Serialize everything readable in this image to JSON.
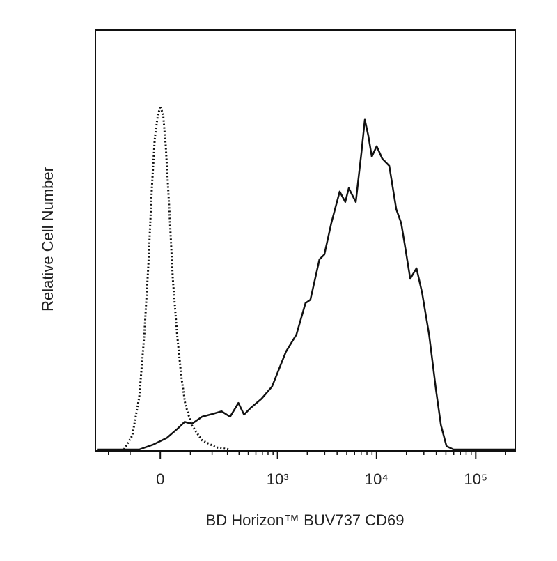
{
  "chart_data": {
    "type": "line",
    "xlabel": "BD Horizon™ BUV737 CD69",
    "ylabel": "Relative Cell Number",
    "xscale": "asinh",
    "xlim": [
      -283,
      250000
    ],
    "ylim": [
      0,
      100
    ],
    "xticks": [
      0,
      {
        "value": 1000,
        "label": "10³"
      },
      {
        "value": 10000,
        "label": "10⁴"
      },
      {
        "value": 100000,
        "label": "10⁵"
      }
    ],
    "xminorticks": [
      -200,
      -100,
      100,
      200,
      300,
      400,
      500,
      600,
      700,
      800,
      900,
      2000,
      3000,
      4000,
      5000,
      6000,
      7000,
      8000,
      9000,
      20000,
      30000,
      40000,
      50000,
      60000,
      70000,
      80000,
      90000,
      200000
    ],
    "series": [
      {
        "color": "#111111",
        "dash": "dotted",
        "x": [
          -125,
          -92,
          -67,
          -50,
          -37,
          -26,
          -17,
          -9,
          0,
          9,
          17,
          28,
          39,
          53,
          67,
          81,
          105,
          149,
          224,
          321
        ],
        "values": [
          0,
          3.3,
          12.5,
          27.4,
          44.0,
          62.3,
          73.9,
          78.9,
          81.9,
          79.7,
          72.3,
          57.3,
          40.7,
          27.4,
          17.4,
          10.8,
          5.8,
          2.2,
          0.5,
          0
        ]
      },
      {
        "color": "#111111",
        "dash": "solid",
        "x": [
          -267,
          -67,
          -21,
          21,
          55,
          79,
          105,
          149,
          205,
          258,
          321,
          394,
          452,
          535,
          686,
          878,
          1217,
          1552,
          1919,
          2149,
          2655,
          2975,
          3498,
          4250,
          4835,
          5246,
          6170,
          7025,
          7620,
          8262,
          8960,
          10030,
          11420,
          13440,
          15800,
          17700,
          19200,
          21850,
          25280,
          28780,
          33860,
          39800,
          44550,
          50750,
          59660,
          250000
        ],
        "values": [
          0,
          0,
          1.2,
          2.8,
          5.0,
          6.6,
          6.1,
          7.8,
          8.5,
          9.1,
          7.8,
          11.1,
          8.3,
          10.0,
          12.1,
          15.0,
          23.3,
          27.4,
          34.9,
          35.7,
          45.3,
          46.5,
          54.0,
          61.5,
          59.0,
          62.3,
          59.0,
          70.6,
          78.6,
          74.8,
          69.8,
          72.3,
          69.3,
          67.6,
          57.3,
          54.0,
          49.0,
          40.7,
          43.2,
          37.4,
          27.4,
          14.1,
          5.8,
          0.8,
          0,
          0
        ]
      }
    ]
  }
}
